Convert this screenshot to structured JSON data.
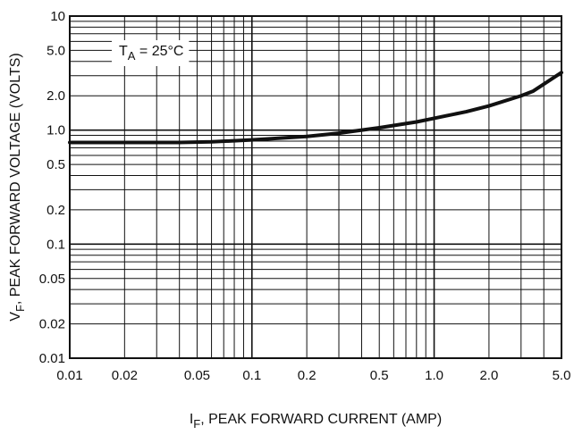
{
  "chart_data": {
    "type": "line",
    "xscale": "log",
    "yscale": "log",
    "xlim": [
      0.01,
      5.0
    ],
    "ylim": [
      0.01,
      10
    ],
    "x_major_ticks": [
      0.01,
      0.1,
      1.0
    ],
    "y_major_ticks": [
      0.01,
      0.1,
      1.0,
      10
    ],
    "x_tick_labels": [
      {
        "value": 0.01,
        "label": "0.01"
      },
      {
        "value": 0.02,
        "label": "0.02"
      },
      {
        "value": 0.05,
        "label": "0.05"
      },
      {
        "value": 0.1,
        "label": "0.1"
      },
      {
        "value": 0.2,
        "label": "0.2"
      },
      {
        "value": 0.5,
        "label": "0.5"
      },
      {
        "value": 1.0,
        "label": "1.0"
      },
      {
        "value": 2.0,
        "label": "2.0"
      },
      {
        "value": 5.0,
        "label": "5.0"
      }
    ],
    "y_tick_labels": [
      {
        "value": 10,
        "label": "10"
      },
      {
        "value": 5.0,
        "label": "5.0"
      },
      {
        "value": 2.0,
        "label": "2.0"
      },
      {
        "value": 1.0,
        "label": "1.0"
      },
      {
        "value": 0.5,
        "label": "0.5"
      },
      {
        "value": 0.2,
        "label": "0.2"
      },
      {
        "value": 0.1,
        "label": "0.1"
      },
      {
        "value": 0.05,
        "label": "0.05"
      },
      {
        "value": 0.02,
        "label": "0.02"
      },
      {
        "value": 0.01,
        "label": "0.01"
      }
    ],
    "xlabel": {
      "main": "I",
      "sub": "F",
      "rest": ", PEAK FORWARD CURRENT (AMP)"
    },
    "ylabel": {
      "main": "V",
      "sub": "F",
      "rest": ", PEAK FORWARD VOLTAGE (VOLTS)"
    },
    "annotation": {
      "main": "T",
      "sub": "A",
      "rest": " = 25°C"
    },
    "grid": true,
    "series": [
      {
        "x": [
          0.01,
          0.02,
          0.04,
          0.06,
          0.1,
          0.2,
          0.3,
          0.5,
          0.8,
          1.0,
          1.5,
          2.0,
          3.0,
          3.5,
          5.0
        ],
        "y": [
          0.78,
          0.78,
          0.78,
          0.79,
          0.82,
          0.88,
          0.94,
          1.05,
          1.18,
          1.27,
          1.45,
          1.63,
          2.0,
          2.2,
          3.2
        ]
      }
    ]
  }
}
